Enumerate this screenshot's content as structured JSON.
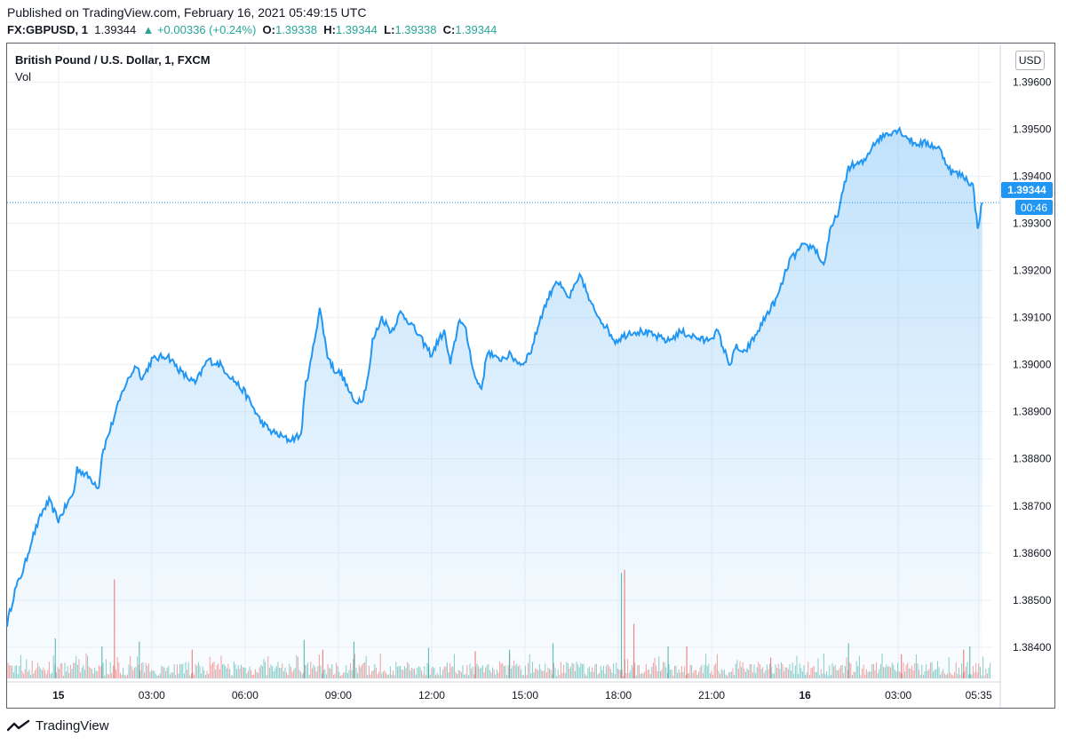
{
  "header": {
    "published": "Published on TradingView.com, February 16, 2021 05:49:15 UTC",
    "symbol": "FX:GBPUSD, 1",
    "last": "1.39344",
    "change": "▲ +0.00336 (+0.24%)",
    "o_label": "O:",
    "o": "1.39338",
    "h_label": "H:",
    "h": "1.39344",
    "l_label": "L:",
    "l": "1.39338",
    "c_label": "C:",
    "c": "1.39344"
  },
  "legend": {
    "title": "British Pound / U.S. Dollar, 1, FXCM",
    "vol": "Vol"
  },
  "currency": "USD",
  "price_label": "1.39344",
  "countdown": "00:46",
  "footer": {
    "brand": "TradingView"
  },
  "colors": {
    "line": "#2196f3",
    "up": "#26a69a",
    "down": "#ef5350",
    "grid": "#eef1f4"
  },
  "chart_data": {
    "type": "area",
    "title": "British Pound / U.S. Dollar, 1, FXCM",
    "xlabel": "",
    "ylabel": "USD",
    "ylim": [
      1.3833,
      1.3968
    ],
    "y_ticks": [
      "1.38400",
      "1.38500",
      "1.38600",
      "1.38700",
      "1.38800",
      "1.38900",
      "1.39000",
      "1.39100",
      "1.39200",
      "1.39300",
      "1.39400",
      "1.39500",
      "1.39600"
    ],
    "x_tick_labels": [
      "15",
      "03:00",
      "06:00",
      "09:00",
      "12:00",
      "15:00",
      "18:00",
      "21:00",
      "16",
      "03:00",
      "05:35"
    ],
    "x_tick_hours": [
      0,
      3,
      6,
      9,
      12,
      15,
      18,
      21,
      24,
      27,
      29.583
    ],
    "x_range_hours": [
      -1.65,
      30.05
    ],
    "x": [
      -1.65,
      -1.4,
      -1.1,
      -0.85,
      -0.5,
      -0.3,
      0,
      0.5,
      0.6,
      1,
      1.3,
      1.4,
      1.7,
      2.1,
      2.5,
      2.7,
      3,
      3.5,
      4,
      4.4,
      4.8,
      5.2,
      5.6,
      6,
      6.5,
      6.8,
      7.4,
      7.8,
      7.95,
      8.1,
      8.4,
      8.65,
      8.85,
      9.1,
      9.5,
      9.8,
      10,
      10.1,
      10.4,
      10.7,
      11,
      11.3,
      11.7,
      12,
      12.2,
      12.4,
      12.6,
      12.9,
      13.1,
      13.4,
      13.6,
      13.8,
      14.1,
      14.5,
      14.9,
      15.2,
      15.5,
      15.8,
      16,
      16.4,
      16.8,
      17.1,
      17.5,
      17.9,
      18.4,
      18.8,
      19.2,
      19.6,
      20,
      20.4,
      20.8,
      21.2,
      21.4,
      21.6,
      21.8,
      22,
      22.4,
      22.8,
      23.1,
      23.5,
      23.9,
      24.3,
      24.6,
      24.8,
      25.1,
      25.4,
      25.9,
      26.2,
      26.6,
      27,
      27.5,
      27.9,
      28.3,
      28.7,
      29.1,
      29.4,
      29.55,
      29.7
    ],
    "values": [
      1.3845,
      1.3852,
      1.3857,
      1.3863,
      1.3869,
      1.3871,
      1.3867,
      1.3873,
      1.3878,
      1.3876,
      1.3874,
      1.3881,
      1.3887,
      1.3895,
      1.39,
      1.3897,
      1.3901,
      1.3902,
      1.3898,
      1.3896,
      1.3901,
      1.39,
      1.3897,
      1.3894,
      1.3888,
      1.3886,
      1.3884,
      1.3885,
      1.3896,
      1.39,
      1.3912,
      1.3902,
      1.3899,
      1.3898,
      1.3892,
      1.3893,
      1.3899,
      1.3905,
      1.391,
      1.3907,
      1.3911,
      1.3909,
      1.3905,
      1.3902,
      1.3905,
      1.3907,
      1.39,
      1.391,
      1.3907,
      1.3897,
      1.3895,
      1.3903,
      1.3901,
      1.3902,
      1.39,
      1.3903,
      1.391,
      1.3915,
      1.3918,
      1.3914,
      1.3919,
      1.3913,
      1.3909,
      1.3905,
      1.3907,
      1.3907,
      1.3906,
      1.3905,
      1.3907,
      1.3906,
      1.3905,
      1.3907,
      1.3903,
      1.39,
      1.3904,
      1.3902,
      1.3906,
      1.3911,
      1.3914,
      1.3922,
      1.3925,
      1.3925,
      1.3921,
      1.3928,
      1.3933,
      1.3942,
      1.3943,
      1.3947,
      1.3949,
      1.395,
      1.3947,
      1.3947,
      1.3946,
      1.3941,
      1.394,
      1.3938,
      1.3929,
      1.39344
    ],
    "volume_series": [
      {
        "name": "up",
        "spikes": [
          [
            -0.1,
            25
          ],
          [
            1.4,
            20
          ],
          [
            2.6,
            23
          ],
          [
            7.9,
            24
          ],
          [
            9.5,
            23
          ],
          [
            11.9,
            19
          ],
          [
            14.5,
            18
          ],
          [
            15.9,
            22
          ],
          [
            18.1,
            66
          ],
          [
            19.6,
            20
          ],
          [
            25.4,
            22
          ],
          [
            29.3,
            20
          ]
        ]
      },
      {
        "name": "down",
        "spikes": [
          [
            1.8,
            62
          ],
          [
            4.3,
            18
          ],
          [
            8.5,
            18
          ],
          [
            13.4,
            17
          ],
          [
            18.2,
            68
          ],
          [
            18.5,
            34
          ],
          [
            20.2,
            20
          ],
          [
            22.9,
            13
          ],
          [
            27.1,
            15
          ],
          [
            29.1,
            18
          ]
        ]
      }
    ]
  }
}
